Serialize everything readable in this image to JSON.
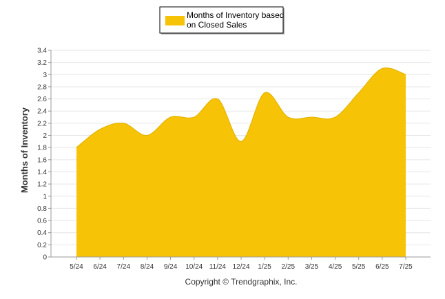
{
  "chart_data": {
    "type": "area",
    "categories": [
      "5/24",
      "6/24",
      "7/24",
      "8/24",
      "9/24",
      "10/24",
      "11/24",
      "12/24",
      "1/25",
      "2/25",
      "3/25",
      "4/25",
      "5/25",
      "6/25",
      "7/25"
    ],
    "series": [
      {
        "name": "Months of Inventory based on Closed Sales",
        "legend_lines": [
          "Months of Inventory based",
          "on Closed Sales"
        ],
        "values": [
          1.8,
          2.1,
          2.2,
          2.0,
          2.3,
          2.3,
          2.6,
          1.9,
          2.7,
          2.3,
          2.3,
          2.3,
          2.7,
          3.1,
          3.0
        ],
        "color": "#F7C306"
      }
    ],
    "ylabel": "Months of Inventory",
    "xlabel": "",
    "ylim": [
      0,
      3.4
    ],
    "yticks": [
      "0",
      "0.2",
      "0.4",
      "0.6",
      "0.8",
      "1",
      "1.2",
      "1.4",
      "1.6",
      "1.8",
      "2",
      "2.2",
      "2.4",
      "2.6",
      "2.8",
      "3",
      "3.2",
      "3.4"
    ],
    "grid": true,
    "legend_position": "top-center"
  },
  "footer": "Copyright © Trendgraphix, Inc."
}
